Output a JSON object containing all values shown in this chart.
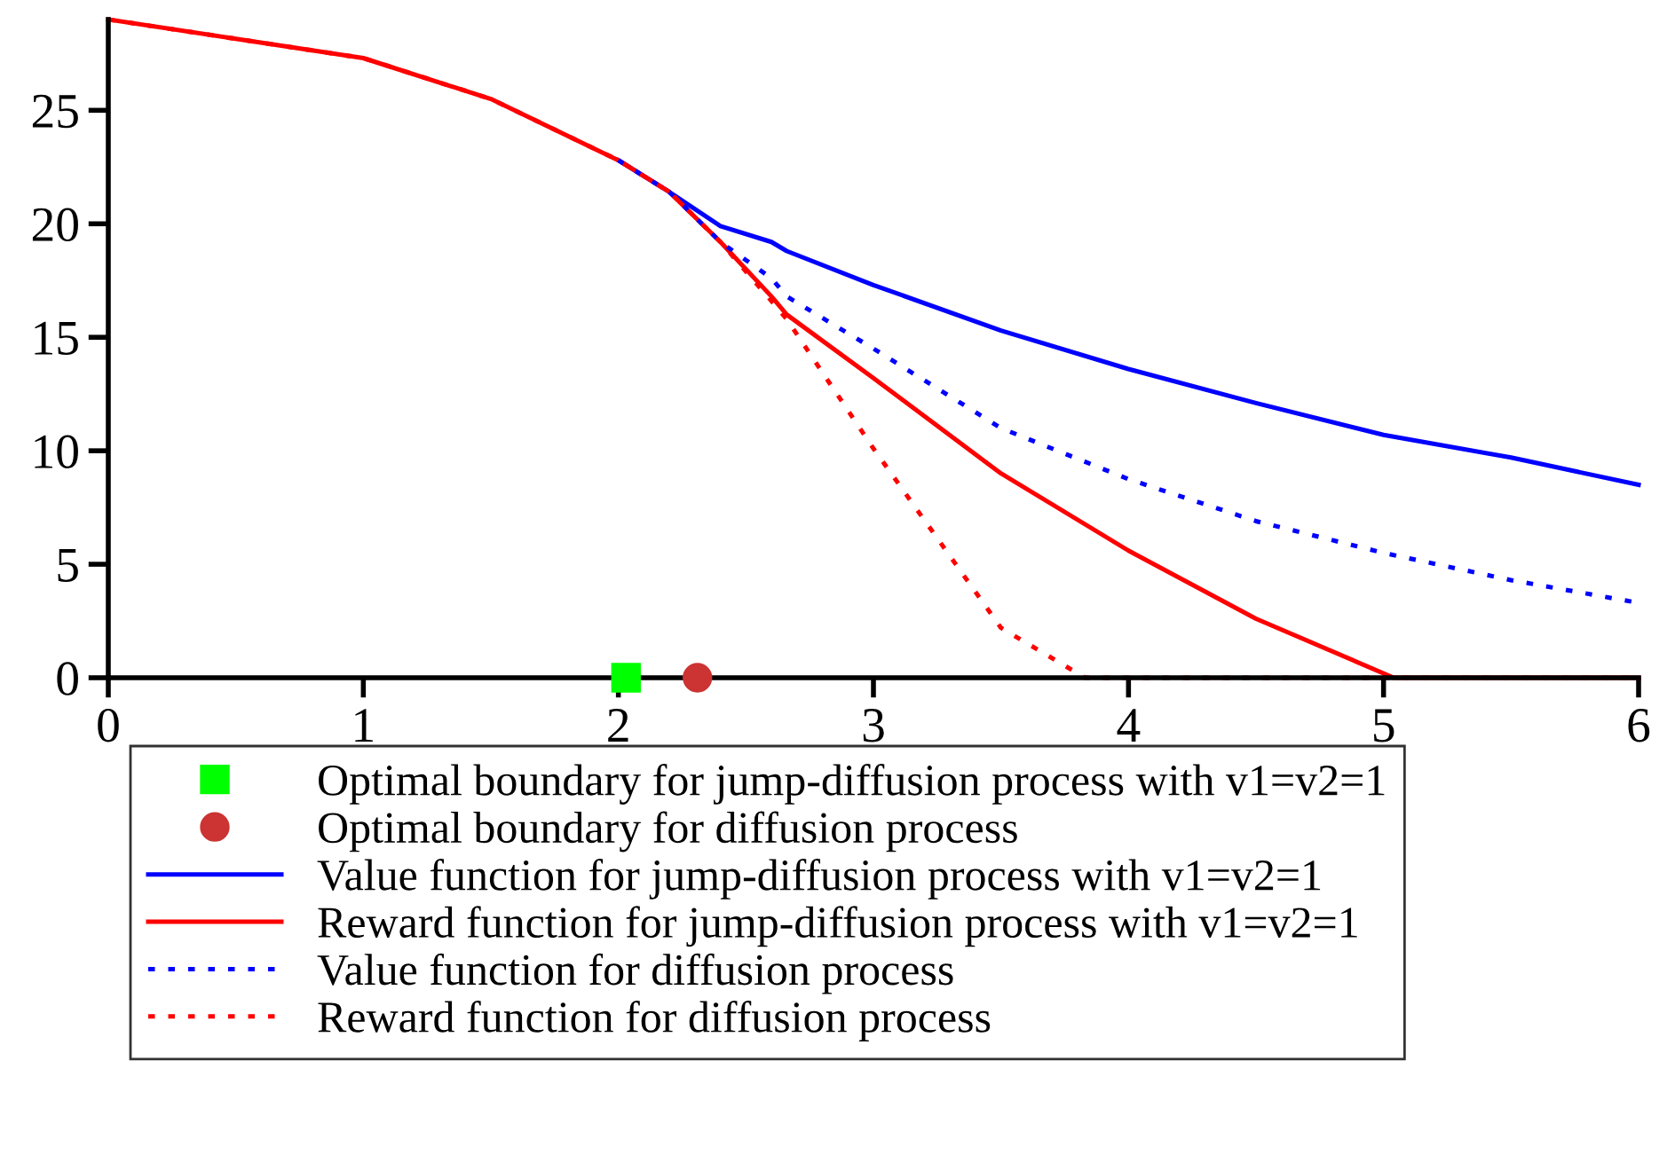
{
  "chart_data": {
    "type": "line",
    "xlim": [
      0,
      6
    ],
    "ylim": [
      0,
      29
    ],
    "xticks": [
      0,
      1,
      2,
      3,
      4,
      5,
      6
    ],
    "yticks": [
      0,
      5,
      10,
      15,
      20,
      25
    ],
    "grid": false,
    "legend": "bottom",
    "series": [
      {
        "name": "Optimal boundary for jump-diffusion process with v1=v2=1",
        "type": "scatter",
        "marker": "square",
        "color": "#00ff00",
        "x": [
          2.03
        ],
        "values": [
          0
        ]
      },
      {
        "name": "Optimal boundary for diffusion process",
        "type": "scatter",
        "marker": "circle",
        "color": "#cc3333",
        "x": [
          2.31
        ],
        "values": [
          0
        ]
      },
      {
        "name": "Value function for jump-diffusion process with v1=v2=1",
        "line_style": "solid",
        "color": "#0000ff",
        "x": [
          2,
          2.2,
          2.4,
          2.6,
          2.66,
          3,
          3.5,
          4,
          4.5,
          5,
          5.5,
          6
        ],
        "values": [
          22.8,
          21.4,
          19.9,
          19.2,
          18.8,
          17.3,
          15.3,
          13.6,
          12.1,
          10.7,
          9.7,
          8.5
        ]
      },
      {
        "name": "Reward function for jump-diffusion process with v1=v2=1",
        "line_style": "solid",
        "color": "#ff0000",
        "x": [
          0,
          0.5,
          1,
          1.5,
          2,
          2.2,
          2.4,
          2.6,
          2.66,
          3,
          3.5,
          4,
          4.5,
          5.04,
          6
        ],
        "values": [
          29.0,
          28.15,
          27.3,
          25.5,
          22.8,
          21.4,
          19.2,
          16.8,
          16.0,
          13.2,
          9.0,
          5.6,
          2.6,
          0,
          0
        ]
      },
      {
        "name": "Value function for diffusion process",
        "line_style": "dotted",
        "color": "#0000ff",
        "x": [
          2,
          2.2,
          2.4,
          2.6,
          2.66,
          3,
          3.5,
          4,
          4.5,
          5,
          5.5,
          6
        ],
        "values": [
          22.8,
          21.4,
          19.2,
          17.6,
          16.8,
          14.5,
          11.0,
          8.75,
          6.9,
          5.5,
          4.3,
          3.3
        ]
      },
      {
        "name": "Reward function for diffusion process",
        "line_style": "dotted",
        "color": "#ff0000",
        "x": [
          0,
          0.5,
          1,
          1.5,
          2,
          2.2,
          2.4,
          2.6,
          2.66,
          3,
          3.5,
          3.83,
          6
        ],
        "values": [
          29.0,
          28.15,
          27.3,
          25.5,
          22.8,
          21.4,
          19.2,
          16.6,
          15.8,
          10.1,
          2.2,
          0,
          0
        ]
      }
    ]
  }
}
